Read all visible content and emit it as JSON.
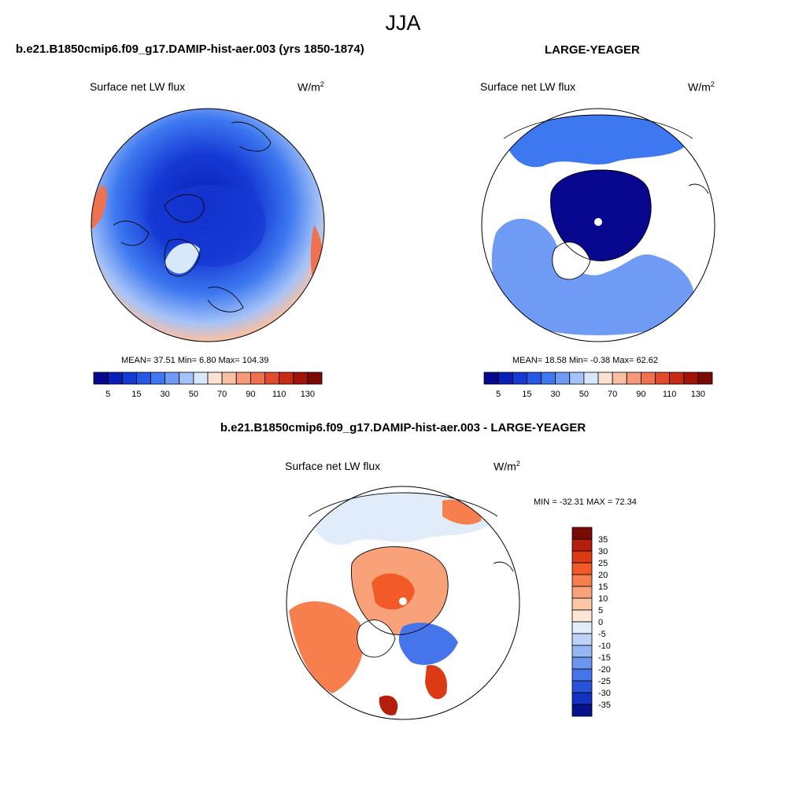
{
  "title": "JJA",
  "panels": [
    {
      "title": "b.e21.B1850cmip6.f09_g17.DAMIP-hist-aer.003 (yrs 1850-1874)",
      "variable": "Surface net LW flux",
      "units_base": "W/m",
      "units_sup": "2",
      "stats": "MEAN=  37.51  Min=   6.80  Max= 104.39"
    },
    {
      "title": "LARGE-YEAGER",
      "variable": "Surface net LW flux",
      "units_base": "W/m",
      "units_sup": "2",
      "stats": "MEAN=  18.58  Min=  -0.38  Max=  62.62"
    },
    {
      "title": "b.e21.B1850cmip6.f09_g17.DAMIP-hist-aer.003 - LARGE-YEAGER",
      "variable": "Surface net LW flux",
      "units_base": "W/m",
      "units_sup": "2",
      "stats": "MIN = -32.31 MAX =  72.34"
    }
  ],
  "chart_data": [
    {
      "type": "heatmap",
      "title": "b.e21.B1850cmip6.f09_g17.DAMIP-hist-aer.003 (yrs 1850-1874)",
      "projection": "north-polar-stereographic",
      "variable": "Surface net LW flux",
      "mean": 37.51,
      "min": 6.8,
      "max": 104.39,
      "colorbar": {
        "orientation": "horizontal",
        "levels": [
          5,
          10,
          15,
          20,
          30,
          40,
          50,
          60,
          70,
          80,
          90,
          100,
          110,
          120,
          130
        ],
        "tick_labels": [
          "5",
          "15",
          "30",
          "50",
          "70",
          "90",
          "110",
          "130"
        ],
        "colors": [
          "#08088e",
          "#0a1fb8",
          "#1539d4",
          "#2458e6",
          "#3d78f0",
          "#6f9bf5",
          "#a6c3f7",
          "#d8e8fb",
          "#fde2d2",
          "#f9c0a4",
          "#f59a78",
          "#ef7250",
          "#e24a2a",
          "#c82a14",
          "#a01508",
          "#7a0a04"
        ]
      }
    },
    {
      "type": "heatmap",
      "title": "LARGE-YEAGER",
      "projection": "north-polar-stereographic",
      "variable": "Surface net LW flux",
      "mean": 18.58,
      "min": -0.38,
      "max": 62.62,
      "colorbar": {
        "orientation": "horizontal",
        "levels": [
          5,
          10,
          15,
          20,
          30,
          40,
          50,
          60,
          70,
          80,
          90,
          100,
          110,
          120,
          130
        ],
        "tick_labels": [
          "5",
          "15",
          "30",
          "50",
          "70",
          "90",
          "110",
          "130"
        ],
        "colors": [
          "#08088e",
          "#0a1fb8",
          "#1539d4",
          "#2458e6",
          "#3d78f0",
          "#6f9bf5",
          "#a6c3f7",
          "#d8e8fb",
          "#fde2d2",
          "#f9c0a4",
          "#f59a78",
          "#ef7250",
          "#e24a2a",
          "#c82a14",
          "#a01508",
          "#7a0a04"
        ]
      }
    },
    {
      "type": "heatmap",
      "title": "b.e21.B1850cmip6.f09_g17.DAMIP-hist-aer.003 - LARGE-YEAGER",
      "projection": "north-polar-stereographic",
      "variable": "Surface net LW flux",
      "min": -32.31,
      "max": 72.34,
      "colorbar": {
        "orientation": "vertical",
        "levels": [
          35,
          30,
          25,
          20,
          15,
          10,
          5,
          0,
          -5,
          -10,
          -15,
          -20,
          -25,
          -30,
          -35
        ],
        "tick_labels": [
          "35",
          "30",
          "25",
          "20",
          "15",
          "10",
          "5",
          "0",
          "-5",
          "-10",
          "-15",
          "-20",
          "-25",
          "-30",
          "-35"
        ],
        "colors": [
          "#7a0a04",
          "#b51e0a",
          "#dc3a14",
          "#f25a28",
          "#f77f4e",
          "#f9a27a",
          "#fbc5a6",
          "#fde6d8",
          "#e0ecfa",
          "#bcd3f7",
          "#95b7f3",
          "#6d96ef",
          "#4674ea",
          "#2852dc",
          "#1233c2",
          "#06128a"
        ]
      }
    }
  ]
}
